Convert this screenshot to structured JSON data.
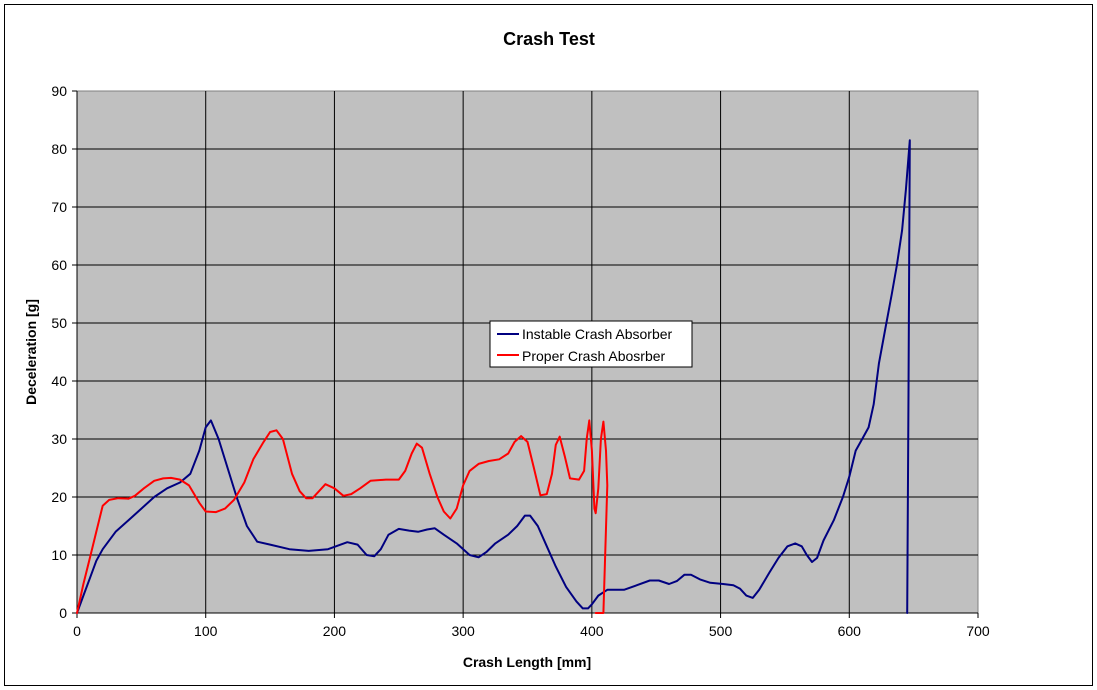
{
  "chart_data": {
    "type": "line",
    "title": "Crash Test",
    "xlabel": "Crash Length [mm]",
    "ylabel": "Deceleration [g]",
    "xlim": [
      0,
      700
    ],
    "ylim": [
      0,
      90
    ],
    "x_ticks": [
      "0",
      "100",
      "200",
      "300",
      "400",
      "500",
      "600",
      "700"
    ],
    "y_ticks": [
      "0",
      "10",
      "20",
      "30",
      "40",
      "50",
      "60",
      "70",
      "80",
      "90"
    ],
    "grid": true,
    "plot_background": "#c0c0c0",
    "legend_position": "center",
    "series": [
      {
        "name": "Instable Crash Absorber",
        "color": "#000080",
        "points": [
          [
            0,
            0
          ],
          [
            5,
            3
          ],
          [
            10,
            6
          ],
          [
            15,
            9
          ],
          [
            20,
            11
          ],
          [
            30,
            14
          ],
          [
            40,
            16
          ],
          [
            50,
            18
          ],
          [
            60,
            20
          ],
          [
            70,
            21.5
          ],
          [
            80,
            22.5
          ],
          [
            88,
            24
          ],
          [
            95,
            28
          ],
          [
            100,
            32
          ],
          [
            104,
            33.2
          ],
          [
            110,
            30
          ],
          [
            117,
            25
          ],
          [
            124,
            20
          ],
          [
            132,
            15
          ],
          [
            140,
            12.3
          ],
          [
            150,
            11.8
          ],
          [
            165,
            11
          ],
          [
            180,
            10.7
          ],
          [
            195,
            11
          ],
          [
            210,
            12.2
          ],
          [
            218,
            11.8
          ],
          [
            225,
            10
          ],
          [
            231,
            9.8
          ],
          [
            236,
            11
          ],
          [
            242,
            13.5
          ],
          [
            250,
            14.5
          ],
          [
            258,
            14.2
          ],
          [
            265,
            14
          ],
          [
            272,
            14.4
          ],
          [
            278,
            14.6
          ],
          [
            285,
            13.5
          ],
          [
            295,
            12
          ],
          [
            305,
            10
          ],
          [
            312,
            9.6
          ],
          [
            318,
            10.5
          ],
          [
            325,
            12
          ],
          [
            335,
            13.5
          ],
          [
            342,
            15
          ],
          [
            348,
            16.8
          ],
          [
            352,
            16.8
          ],
          [
            358,
            15
          ],
          [
            365,
            11.5
          ],
          [
            372,
            8
          ],
          [
            380,
            4.5
          ],
          [
            388,
            2
          ],
          [
            393,
            0.8
          ],
          [
            397,
            0.8
          ],
          [
            400,
            1.5
          ],
          [
            405,
            3
          ],
          [
            412,
            4
          ],
          [
            425,
            4
          ],
          [
            435,
            4.8
          ],
          [
            445,
            5.6
          ],
          [
            452,
            5.6
          ],
          [
            460,
            5
          ],
          [
            466,
            5.5
          ],
          [
            472,
            6.6
          ],
          [
            477,
            6.6
          ],
          [
            484,
            5.8
          ],
          [
            492,
            5.2
          ],
          [
            502,
            5
          ],
          [
            510,
            4.8
          ],
          [
            515,
            4.2
          ],
          [
            520,
            3
          ],
          [
            525,
            2.6
          ],
          [
            530,
            4
          ],
          [
            538,
            7
          ],
          [
            545,
            9.5
          ],
          [
            552,
            11.5
          ],
          [
            558,
            12
          ],
          [
            563,
            11.5
          ],
          [
            567,
            10
          ],
          [
            571,
            8.8
          ],
          [
            575,
            9.5
          ],
          [
            580,
            12.5
          ],
          [
            588,
            16
          ],
          [
            595,
            20
          ],
          [
            600,
            23.5
          ],
          [
            605,
            28
          ],
          [
            610,
            30
          ],
          [
            615,
            32
          ],
          [
            619,
            36
          ],
          [
            623,
            43
          ],
          [
            628,
            49
          ],
          [
            633,
            55
          ],
          [
            637,
            60
          ],
          [
            641,
            66
          ],
          [
            644,
            73
          ],
          [
            647,
            81.5
          ],
          [
            646,
            38
          ],
          [
            645,
            0
          ]
        ]
      },
      {
        "name": "Proper Crash Abosrber",
        "color": "#ff0000",
        "points": [
          [
            0,
            0
          ],
          [
            5,
            5
          ],
          [
            10,
            9.5
          ],
          [
            15,
            14
          ],
          [
            20,
            18.5
          ],
          [
            25,
            19.5
          ],
          [
            32,
            19.8
          ],
          [
            40,
            19.7
          ],
          [
            45,
            20.2
          ],
          [
            52,
            21.5
          ],
          [
            60,
            22.8
          ],
          [
            67,
            23.2
          ],
          [
            73,
            23.3
          ],
          [
            80,
            23
          ],
          [
            87,
            22
          ],
          [
            95,
            19
          ],
          [
            100,
            17.5
          ],
          [
            108,
            17.4
          ],
          [
            115,
            18
          ],
          [
            122,
            19.5
          ],
          [
            130,
            22.5
          ],
          [
            137,
            26.5
          ],
          [
            145,
            29.5
          ],
          [
            150,
            31.2
          ],
          [
            155,
            31.5
          ],
          [
            160,
            30
          ],
          [
            167,
            24
          ],
          [
            173,
            21
          ],
          [
            178,
            19.8
          ],
          [
            183,
            19.8
          ],
          [
            188,
            21
          ],
          [
            193,
            22.2
          ],
          [
            200,
            21.5
          ],
          [
            207,
            20.2
          ],
          [
            213,
            20.5
          ],
          [
            220,
            21.5
          ],
          [
            228,
            22.8
          ],
          [
            240,
            23
          ],
          [
            250,
            23
          ],
          [
            255,
            24.5
          ],
          [
            260,
            27.5
          ],
          [
            264,
            29.2
          ],
          [
            268,
            28.5
          ],
          [
            274,
            24
          ],
          [
            280,
            20
          ],
          [
            285,
            17.5
          ],
          [
            290,
            16.3
          ],
          [
            295,
            18
          ],
          [
            300,
            22
          ],
          [
            305,
            24.5
          ],
          [
            312,
            25.7
          ],
          [
            320,
            26.2
          ],
          [
            328,
            26.5
          ],
          [
            335,
            27.5
          ],
          [
            340,
            29.5
          ],
          [
            345,
            30.5
          ],
          [
            350,
            29.5
          ],
          [
            355,
            25
          ],
          [
            360,
            20.3
          ],
          [
            365,
            20.5
          ],
          [
            369,
            24
          ],
          [
            372,
            29
          ],
          [
            375,
            30.4
          ],
          [
            379,
            27
          ],
          [
            383,
            23.2
          ],
          [
            390,
            23
          ],
          [
            394,
            24.5
          ],
          [
            396,
            30
          ],
          [
            398,
            33.2
          ],
          [
            400,
            28
          ],
          [
            402,
            18
          ],
          [
            403,
            17.2
          ],
          [
            405,
            21.5
          ],
          [
            407,
            30
          ],
          [
            409,
            33
          ],
          [
            411,
            28
          ],
          [
            412,
            22
          ],
          [
            409,
            0
          ],
          [
            403,
            0
          ]
        ]
      }
    ]
  }
}
